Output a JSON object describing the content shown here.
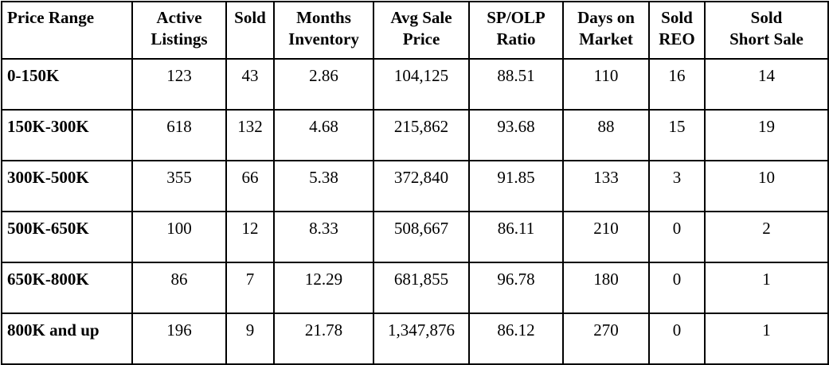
{
  "columns": [
    {
      "line1": "Price Range",
      "line2": ""
    },
    {
      "line1": "Active",
      "line2": "Listings"
    },
    {
      "line1": "Sold",
      "line2": ""
    },
    {
      "line1": "Months",
      "line2": "Inventory"
    },
    {
      "line1": "Avg Sale",
      "line2": "Price"
    },
    {
      "line1": "SP/OLP",
      "line2": "Ratio"
    },
    {
      "line1": "Days on",
      "line2": "Market"
    },
    {
      "line1": "Sold",
      "line2": "REO"
    },
    {
      "line1": "Sold",
      "line2": "Short Sale"
    }
  ],
  "rows": [
    [
      "0-150K",
      "123",
      "43",
      "2.86",
      "104,125",
      "88.51",
      "110",
      "16",
      "14"
    ],
    [
      "150K-300K",
      "618",
      "132",
      "4.68",
      "215,862",
      "93.68",
      "88",
      "15",
      "19"
    ],
    [
      "300K-500K",
      "355",
      "66",
      "5.38",
      "372,840",
      "91.85",
      "133",
      "3",
      "10"
    ],
    [
      "500K-650K",
      "100",
      "12",
      "8.33",
      "508,667",
      "86.11",
      "210",
      "0",
      "2"
    ],
    [
      "650K-800K",
      "86",
      "7",
      "12.29",
      "681,855",
      "96.78",
      "180",
      "0",
      "1"
    ],
    [
      "800K and up",
      "196",
      "9",
      "21.78",
      "1,347,876",
      "86.12",
      "270",
      "0",
      "1"
    ]
  ]
}
